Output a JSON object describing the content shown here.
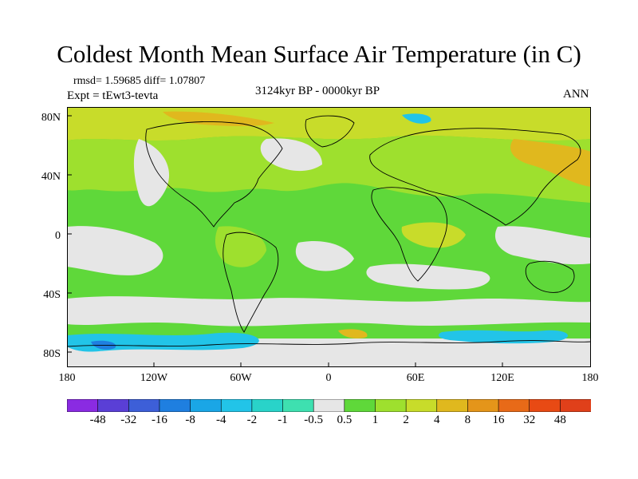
{
  "title": "Coldest Month Mean Surface Air Temperature (in C)",
  "stats_line": "rmsd= 1.59685 diff= 1.07807",
  "experiment_line": "Expt = tEwt3-tevta",
  "period": "3124kyr BP - 0000kyr BP",
  "season": "ANN",
  "lat_labels": [
    "80N",
    "40N",
    "0",
    "40S",
    "80S"
  ],
  "lon_labels": [
    "180",
    "120W",
    "60W",
    "0",
    "60E",
    "120E",
    "180"
  ],
  "colorbar": {
    "labels": [
      "-48",
      "-32",
      "-16",
      "-8",
      "-4",
      "-2",
      "-1",
      "-0.5",
      "0.5",
      "1",
      "2",
      "4",
      "8",
      "16",
      "32",
      "48"
    ],
    "colors": [
      "#8a2be2",
      "#5a3fd6",
      "#3d5fd8",
      "#1f7fe0",
      "#1aa6e6",
      "#22c4e8",
      "#29d3c9",
      "#3ee0b0",
      "#e6e6e6",
      "#5fd83a",
      "#9ee02e",
      "#c8dc2a",
      "#e0b81e",
      "#e4951a",
      "#e86a18",
      "#e84a14",
      "#e0401a"
    ]
  },
  "field_colors": {
    "dominant": "#5fd83a",
    "warm": "#9ee02e",
    "warmer": "#c8dc2a",
    "hot": "#e0b81e",
    "neutral": "#e6e6e6",
    "cool": "#22c4e8",
    "cold": "#1f7fe0"
  }
}
